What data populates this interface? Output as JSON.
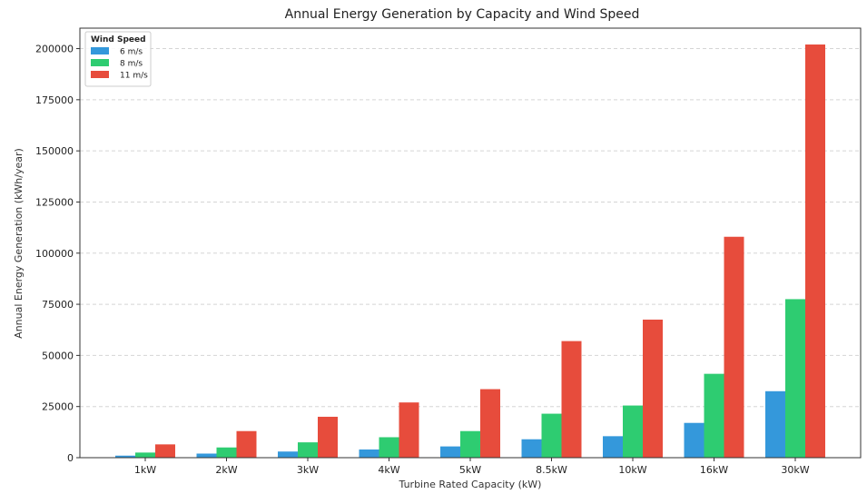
{
  "chart_data": {
    "type": "bar",
    "title": "Annual Energy Generation by Capacity and Wind Speed",
    "xlabel": "Turbine Rated Capacity (kW)",
    "ylabel": "Annual Energy Generation (kWh/year)",
    "ylim": [
      0,
      210000
    ],
    "yticks": [
      0,
      25000,
      50000,
      75000,
      100000,
      125000,
      150000,
      175000,
      200000
    ],
    "grid": true,
    "legend": {
      "title": "Wind Speed",
      "placement": "top-left"
    },
    "categories": [
      "1kW",
      "2kW",
      "3kW",
      "4kW",
      "5kW",
      "8.5kW",
      "10kW",
      "16kW",
      "30kW"
    ],
    "series": [
      {
        "name": "6 m/s",
        "color": "#3498db",
        "values": [
          1000,
          2000,
          3000,
          4000,
          5500,
          9000,
          10500,
          17000,
          32500
        ]
      },
      {
        "name": "8 m/s",
        "color": "#2ecc71",
        "values": [
          2500,
          5000,
          7500,
          10000,
          13000,
          21500,
          25500,
          41000,
          77500
        ]
      },
      {
        "name": "11 m/s",
        "color": "#e74c3c",
        "values": [
          6500,
          13000,
          20000,
          27000,
          33500,
          57000,
          67500,
          108000,
          202000
        ]
      }
    ]
  }
}
